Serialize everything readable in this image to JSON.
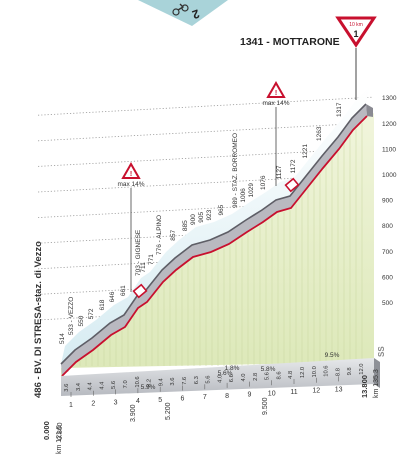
{
  "profile": {
    "finish_label": "1341 - MOTTARONE",
    "finish_badge_top": "10 km",
    "finish_badge_num": "1",
    "start_label": "486 - BV. DI STRESA-staz. di Vezzo",
    "end_distance": "13.800",
    "end_km_label": "km 135.3",
    "start_distance": "0.000",
    "start_km_label": "km 121.5",
    "ss_label": "SS",
    "banner_icon": "cyclist-icon",
    "banner_text": "2"
  },
  "colors": {
    "sky": "#cfe9f1",
    "face": "#e4eec7",
    "road_dark": "#6c6c74",
    "road_light": "#b9b9c0",
    "red_line": "#c8102e",
    "band": "#c4c7cc"
  },
  "elevation_scale": {
    "ticks": [
      "500",
      "600",
      "700",
      "800",
      "900",
      "1000",
      "1100",
      "1200",
      "1300"
    ]
  },
  "places": [
    {
      "name": "514"
    },
    {
      "name": "533 - VEZZO"
    },
    {
      "name": "550"
    },
    {
      "name": "572"
    },
    {
      "name": "618"
    },
    {
      "name": "646"
    },
    {
      "name": "661"
    },
    {
      "name": "703 - GIGNESE"
    },
    {
      "name": "711"
    },
    {
      "name": "771"
    },
    {
      "name": "776 - ALPINO"
    },
    {
      "name": "857"
    },
    {
      "name": "885"
    },
    {
      "name": "900"
    },
    {
      "name": "905"
    },
    {
      "name": "923"
    },
    {
      "name": "965"
    },
    {
      "name": "989 - STAZ. BORROMEO"
    },
    {
      "name": "1006"
    },
    {
      "name": "1029"
    },
    {
      "name": "1076"
    },
    {
      "name": "1127"
    },
    {
      "name": "1172"
    },
    {
      "name": "1221"
    },
    {
      "name": "1263"
    },
    {
      "name": "1317"
    }
  ],
  "gradients": [
    "3.6",
    "3.4",
    "4.4",
    "4.4",
    "5.6",
    "7.0",
    "10.6",
    "8.2",
    "9.4",
    "3.6",
    "7.6",
    "6.3",
    "5.6",
    "4.0",
    "6.6",
    "4.0",
    "2.8",
    "5.6",
    "8.6",
    "4.8",
    "12.0",
    "10.0",
    "10.6",
    "8.8",
    "9.8",
    "12.0"
  ],
  "avg_gradients": [
    "5.9%",
    "5.6%",
    "1.8%",
    "5.8%",
    "9.5%"
  ],
  "km_labels": [
    "1",
    "2",
    "3",
    "4",
    "5",
    "6",
    "7",
    "8",
    "9",
    "10",
    "11",
    "12",
    "13"
  ],
  "distances": [
    "0.860",
    "3.900",
    "5.200",
    "9.500"
  ],
  "max_markers": [
    {
      "label": "max 14%"
    },
    {
      "label": "max 14%"
    }
  ]
}
